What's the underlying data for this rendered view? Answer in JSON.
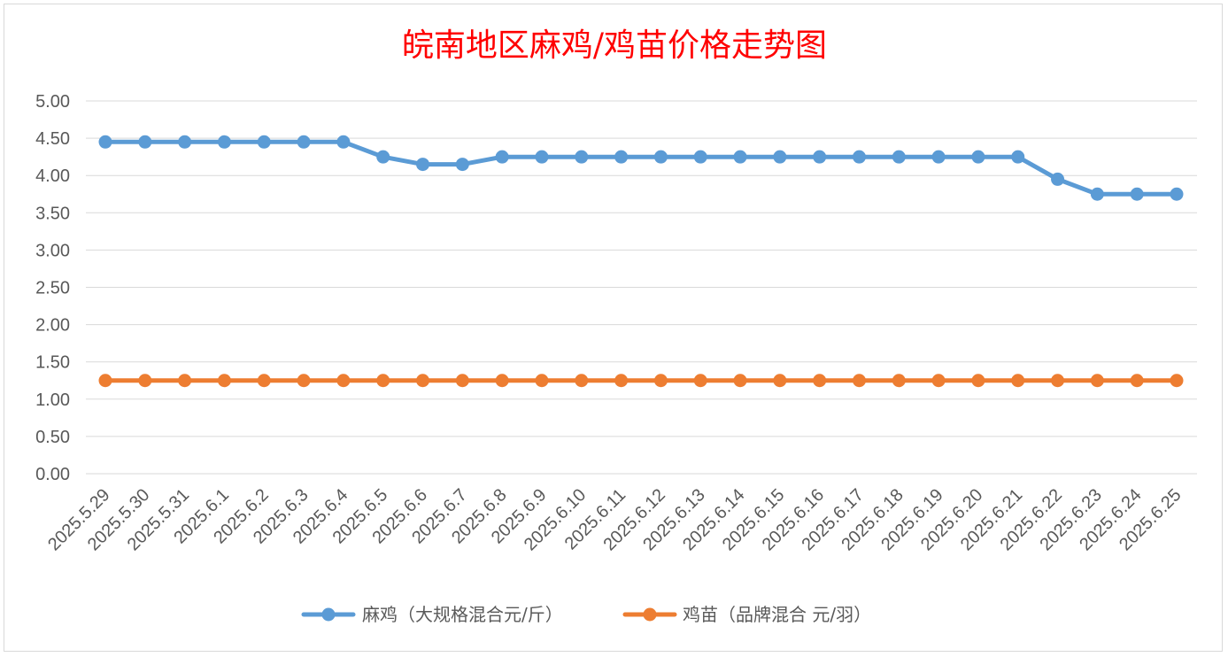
{
  "chart_data": {
    "type": "line",
    "title": "皖南地区麻鸡/鸡苗价格走势图",
    "categories": [
      "2025.5.29",
      "2025.5.30",
      "2025.5.31",
      "2025.6.1",
      "2025.6.2",
      "2025.6.3",
      "2025.6.4",
      "2025.6.5",
      "2025.6.6",
      "2025.6.7",
      "2025.6.8",
      "2025.6.9",
      "2025.6.10",
      "2025.6.11",
      "2025.6.12",
      "2025.6.13",
      "2025.6.14",
      "2025.6.15",
      "2025.6.16",
      "2025.6.17",
      "2025.6.18",
      "2025.6.19",
      "2025.6.20",
      "2025.6.21",
      "2025.6.22",
      "2025.6.23",
      "2025.6.24",
      "2025.6.25"
    ],
    "series": [
      {
        "name": "麻鸡（大规格混合元/斤）",
        "color": "#5b9bd5",
        "values": [
          4.45,
          4.45,
          4.45,
          4.45,
          4.45,
          4.45,
          4.45,
          4.25,
          4.15,
          4.15,
          4.25,
          4.25,
          4.25,
          4.25,
          4.25,
          4.25,
          4.25,
          4.25,
          4.25,
          4.25,
          4.25,
          4.25,
          4.25,
          4.25,
          3.95,
          3.75,
          3.75,
          3.75
        ]
      },
      {
        "name": "鸡苗（品牌混合 元/羽）",
        "color": "#ed7d31",
        "values": [
          1.25,
          1.25,
          1.25,
          1.25,
          1.25,
          1.25,
          1.25,
          1.25,
          1.25,
          1.25,
          1.25,
          1.25,
          1.25,
          1.25,
          1.25,
          1.25,
          1.25,
          1.25,
          1.25,
          1.25,
          1.25,
          1.25,
          1.25,
          1.25,
          1.25,
          1.25,
          1.25,
          1.25
        ]
      }
    ],
    "ylim": [
      0,
      5
    ],
    "yticks": [
      "0.00",
      "0.50",
      "1.00",
      "1.50",
      "2.00",
      "2.50",
      "3.00",
      "3.50",
      "4.00",
      "4.50",
      "5.00"
    ],
    "grid": true,
    "legend": "bottom"
  }
}
